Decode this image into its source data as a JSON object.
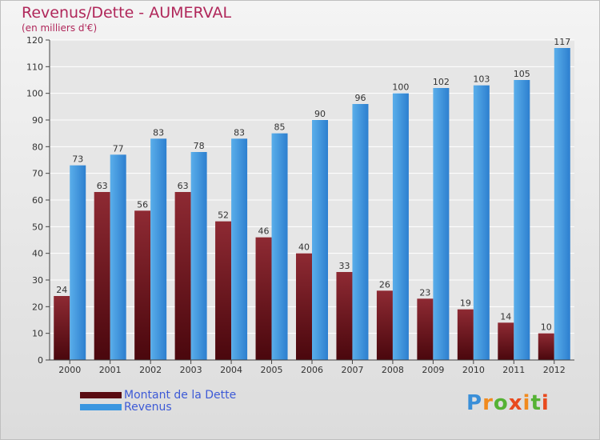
{
  "title": "Revenus/Dette - AUMERVAL",
  "subtitle": "(en milliers d'€)",
  "logo_text": "Proxiti",
  "colors": {
    "debt": "#7a1a22",
    "revenue": "#3a96e0",
    "title": "#b0275a",
    "legend_text": "#3d5ad6",
    "grid": "#ffffff"
  },
  "chart_data": {
    "type": "bar",
    "title": "Revenus/Dette - AUMERVAL",
    "subtitle": "(en milliers d'€)",
    "categories": [
      "2000",
      "2001",
      "2002",
      "2003",
      "2004",
      "2005",
      "2006",
      "2007",
      "2008",
      "2009",
      "2010",
      "2011",
      "2012"
    ],
    "series": [
      {
        "name": "Montant de la Dette",
        "values": [
          24,
          63,
          56,
          63,
          52,
          46,
          40,
          33,
          26,
          23,
          19,
          14,
          10
        ]
      },
      {
        "name": "Revenus",
        "values": [
          73,
          77,
          83,
          78,
          83,
          85,
          90,
          96,
          100,
          102,
          103,
          105,
          117
        ]
      }
    ],
    "ylim": [
      0,
      120
    ],
    "yticks": [
      0,
      10,
      20,
      30,
      40,
      50,
      60,
      70,
      80,
      90,
      100,
      110,
      120
    ],
    "grid": true,
    "legend": "bottom-left"
  }
}
